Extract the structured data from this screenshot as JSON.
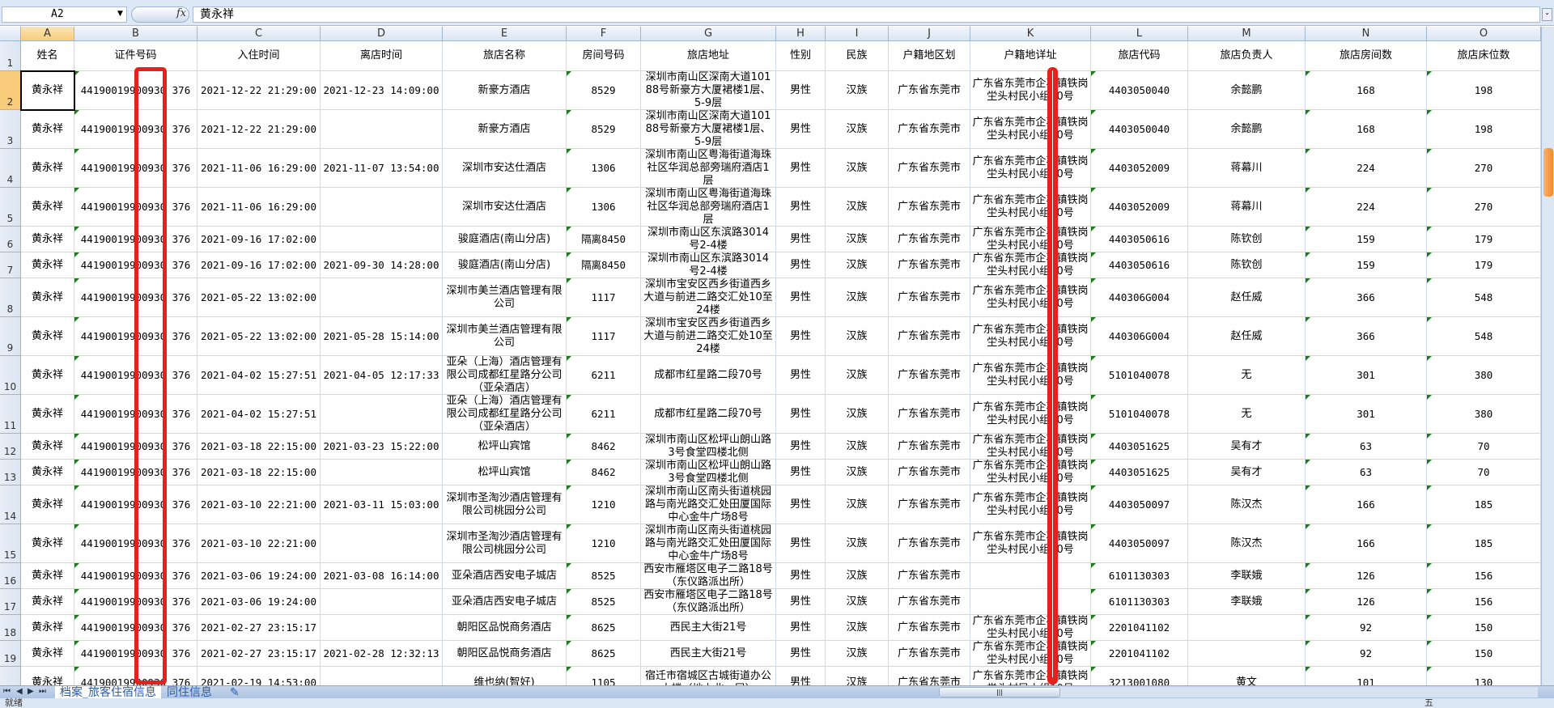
{
  "formula_bar": {
    "name_box": "A2",
    "fx_label": "fx",
    "content": "黄永祥"
  },
  "columns": [
    "A",
    "B",
    "C",
    "D",
    "E",
    "F",
    "G",
    "H",
    "I",
    "J",
    "K",
    "L",
    "M",
    "N",
    "O"
  ],
  "selected_cell": "A2",
  "headers": [
    "姓名",
    "证件号码",
    "入住时间",
    "离店时间",
    "旅店名称",
    "房间号码",
    "旅店地址",
    "性别",
    "民族",
    "户籍地区划",
    "户籍地详址",
    "旅店代码",
    "旅店负责人",
    "旅店房间数",
    "旅店床位数"
  ],
  "rows": [
    [
      "黄永祥",
      "44190019900930 376",
      "2021-12-22 21:29:00",
      "2021-12-23 14:09:00",
      "新豪方酒店",
      "8529",
      "深圳市南山区深南大道10188号新豪方大厦裙楼1层、5-9层",
      "男性",
      "汉族",
      "广东省东莞市",
      "广东省东莞市企石镇铁岗坣头村民小组10号",
      "4403050040",
      "余懿鹏",
      "168",
      "198"
    ],
    [
      "黄永祥",
      "44190019900930 376",
      "2021-12-22 21:29:00",
      "",
      "新豪方酒店",
      "8529",
      "深圳市南山区深南大道10188号新豪方大厦裙楼1层、5-9层",
      "男性",
      "汉族",
      "广东省东莞市",
      "广东省东莞市企石镇铁岗坣头村民小组10号",
      "4403050040",
      "余懿鹏",
      "168",
      "198"
    ],
    [
      "黄永祥",
      "44190019900930 376",
      "2021-11-06 16:29:00",
      "2021-11-07 13:54:00",
      "深圳市安达仕酒店",
      "1306",
      "深圳市南山区粤海街道海珠社区华润总部旁瑞府酒店1层",
      "男性",
      "汉族",
      "广东省东莞市",
      "广东省东莞市企石镇铁岗坣头村民小组10号",
      "4403052009",
      "蒋幕川",
      "224",
      "270"
    ],
    [
      "黄永祥",
      "44190019900930 376",
      "2021-11-06 16:29:00",
      "",
      "深圳市安达仕酒店",
      "1306",
      "深圳市南山区粤海街道海珠社区华润总部旁瑞府酒店1层",
      "男性",
      "汉族",
      "广东省东莞市",
      "广东省东莞市企石镇铁岗坣头村民小组10号",
      "4403052009",
      "蒋幕川",
      "224",
      "270"
    ],
    [
      "黄永祥",
      "44190019900930 376",
      "2021-09-16 17:02:00",
      "",
      "骏庭酒店(南山分店)",
      "隔离8450",
      "深圳市南山区东滨路3014号2-4楼",
      "男性",
      "汉族",
      "广东省东莞市",
      "广东省东莞市企石镇铁岗坣头村民小组10号",
      "4403050616",
      "陈钦创",
      "159",
      "179"
    ],
    [
      "黄永祥",
      "44190019900930 376",
      "2021-09-16 17:02:00",
      "2021-09-30 14:28:00",
      "骏庭酒店(南山分店)",
      "隔离8450",
      "深圳市南山区东滨路3014号2-4楼",
      "男性",
      "汉族",
      "广东省东莞市",
      "广东省东莞市企石镇铁岗坣头村民小组10号",
      "4403050616",
      "陈钦创",
      "159",
      "179"
    ],
    [
      "黄永祥",
      "44190019900930 376",
      "2021-05-22 13:02:00",
      "",
      "深圳市美兰酒店管理有限公司",
      "1117",
      "深圳市宝安区西乡街道西乡大道与前进二路交汇处10至24楼",
      "男性",
      "汉族",
      "广东省东莞市",
      "广东省东莞市企石镇铁岗坣头村民小组10号",
      "440306G004",
      "赵任威",
      "366",
      "548"
    ],
    [
      "黄永祥",
      "44190019900930 376",
      "2021-05-22 13:02:00",
      "2021-05-28 15:14:00",
      "深圳市美兰酒店管理有限公司",
      "1117",
      "深圳市宝安区西乡街道西乡大道与前进二路交汇处10至24楼",
      "男性",
      "汉族",
      "广东省东莞市",
      "广东省东莞市企石镇铁岗坣头村民小组10号",
      "440306G004",
      "赵任威",
      "366",
      "548"
    ],
    [
      "黄永祥",
      "44190019900930 376",
      "2021-04-02 15:27:51",
      "2021-04-05 12:17:33",
      "亚朵（上海）酒店管理有限公司成都红星路分公司（亚朵酒店）",
      "6211",
      "成都市红星路二段70号",
      "男性",
      "汉族",
      "广东省东莞市",
      "广东省东莞市企石镇铁岗坣头村民小组10号",
      "5101040078",
      "无",
      "301",
      "380"
    ],
    [
      "黄永祥",
      "44190019900930 376",
      "2021-04-02 15:27:51",
      "",
      "亚朵（上海）酒店管理有限公司成都红星路分公司（亚朵酒店）",
      "6211",
      "成都市红星路二段70号",
      "男性",
      "汉族",
      "广东省东莞市",
      "广东省东莞市企石镇铁岗坣头村民小组10号",
      "5101040078",
      "无",
      "301",
      "380"
    ],
    [
      "黄永祥",
      "44190019900930 376",
      "2021-03-18 22:15:00",
      "2021-03-23 15:22:00",
      "松坪山宾馆",
      "8462",
      "深圳市南山区松坪山朗山路3号食堂四楼北侧",
      "男性",
      "汉族",
      "广东省东莞市",
      "广东省东莞市企石镇铁岗坣头村民小组10号",
      "4403051625",
      "吴有才",
      "63",
      "70"
    ],
    [
      "黄永祥",
      "44190019900930 376",
      "2021-03-18 22:15:00",
      "",
      "松坪山宾馆",
      "8462",
      "深圳市南山区松坪山朗山路3号食堂四楼北侧",
      "男性",
      "汉族",
      "广东省东莞市",
      "广东省东莞市企石镇铁岗坣头村民小组10号",
      "4403051625",
      "吴有才",
      "63",
      "70"
    ],
    [
      "黄永祥",
      "44190019900930 376",
      "2021-03-10 22:21:00",
      "2021-03-11 15:03:00",
      "深圳市圣淘沙酒店管理有限公司桃园分公司",
      "1210",
      "深圳市南山区南头街道桃园路与南光路交汇处田厦国际中心金牛广场8号",
      "男性",
      "汉族",
      "广东省东莞市",
      "广东省东莞市企石镇铁岗坣头村民小组10号",
      "4403050097",
      "陈汉杰",
      "166",
      "185"
    ],
    [
      "黄永祥",
      "44190019900930 376",
      "2021-03-10 22:21:00",
      "",
      "深圳市圣淘沙酒店管理有限公司桃园分公司",
      "1210",
      "深圳市南山区南头街道桃园路与南光路交汇处田厦国际中心金牛广场8号",
      "男性",
      "汉族",
      "广东省东莞市",
      "广东省东莞市企石镇铁岗坣头村民小组10号",
      "4403050097",
      "陈汉杰",
      "166",
      "185"
    ],
    [
      "黄永祥",
      "44190019900930 376",
      "2021-03-06 19:24:00",
      "2021-03-08 16:14:00",
      "亚朵酒店西安电子城店",
      "8525",
      "西安市雁塔区电子二路18号（东仪路派出所）",
      "男性",
      "汉族",
      "广东省东莞市",
      "",
      "6101130303",
      "李联娥",
      "126",
      "156"
    ],
    [
      "黄永祥",
      "44190019900930 376",
      "2021-03-06 19:24:00",
      "",
      "亚朵酒店西安电子城店",
      "8525",
      "西安市雁塔区电子二路18号（东仪路派出所）",
      "男性",
      "汉族",
      "广东省东莞市",
      "",
      "6101130303",
      "李联娥",
      "126",
      "156"
    ],
    [
      "黄永祥",
      "44190019900930 376",
      "2021-02-27 23:15:17",
      "",
      "朝阳区品悦商务酒店",
      "8625",
      "西民主大街21号",
      "男性",
      "汉族",
      "广东省东莞市",
      "广东省东莞市企石镇铁岗坣头村民小组10号",
      "2201041102",
      "",
      "92",
      "150"
    ],
    [
      "黄永祥",
      "44190019900930 376",
      "2021-02-27 23:15:17",
      "2021-02-28 12:32:13",
      "朝阳区品悦商务酒店",
      "8625",
      "西民主大街21号",
      "男性",
      "汉族",
      "广东省东莞市",
      "广东省东莞市企石镇铁岗坣头村民小组10号",
      "2201041102",
      "",
      "92",
      "150"
    ],
    [
      "黄永祥",
      "44190019900930 376",
      "2021-02-19 14:53:00",
      "",
      "维也纳(智好)",
      "1105",
      "宿迁市宿城区古城街道办公大楼（地上北一层）",
      "男性",
      "汉族",
      "广东省东莞市",
      "广东省东莞市企石镇铁岗坣头村民小组10号",
      "3213001080",
      "黄文",
      "101",
      "130"
    ]
  ],
  "sheet_tabs": [
    {
      "label": "档案_旅客住宿信息",
      "active": true
    },
    {
      "label": "同住信息",
      "active": false
    }
  ],
  "status": {
    "ready": "就绪",
    "ime": "五"
  },
  "colors": {
    "highlight_red": "#e8201c",
    "selection_header": "#f8cc7a",
    "grid_line": "#d0d7e5"
  }
}
